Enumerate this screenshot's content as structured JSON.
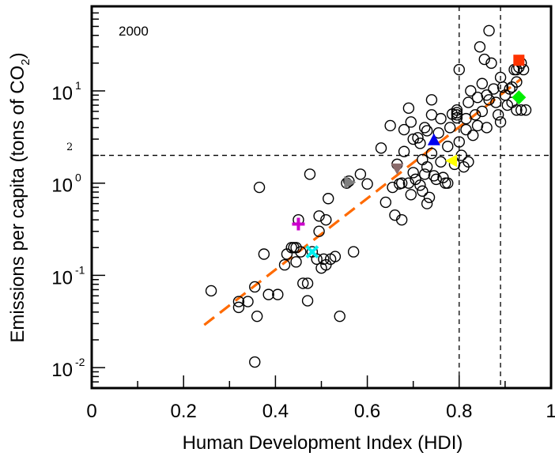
{
  "chart_data": {
    "type": "scatter",
    "title": "",
    "annotation": "2000",
    "xlabel": "Human Development Index (HDI)",
    "ylabel_main": "Emissions per capita (tons of CO",
    "ylabel_sub": "2",
    "ylabel_close": ")",
    "xlim": [
      0,
      1
    ],
    "ylim": [
      0.0066,
      82
    ],
    "yscale": "log",
    "x_ticks": [
      {
        "value": 0,
        "label": "0"
      },
      {
        "value": 0.2,
        "label": "0.2"
      },
      {
        "value": 0.4,
        "label": "0.4"
      },
      {
        "value": 0.6,
        "label": "0.6"
      },
      {
        "value": 0.8,
        "label": "0.8"
      },
      {
        "value": 1.0,
        "label": "1"
      }
    ],
    "x_minor_ticks": [
      0.1,
      0.3,
      0.5,
      0.7,
      0.9
    ],
    "y_ticks": [
      {
        "value": 10,
        "base": "10",
        "exp": "1"
      },
      {
        "value": 1,
        "base": "10",
        "exp": "0"
      },
      {
        "value": 0.1,
        "base": "10",
        "exp": "-1"
      },
      {
        "value": 0.01,
        "base": "10",
        "exp": "-2"
      }
    ],
    "reference_lines": {
      "horizontal": {
        "value": 2,
        "label": "2",
        "style": "dashed"
      },
      "vertical": [
        {
          "value": 0.8,
          "style": "dashed"
        },
        {
          "value": 0.89,
          "style": "dashed"
        }
      ]
    },
    "trend_line": {
      "x": [
        0.245,
        0.935
      ],
      "y": [
        0.029,
        13.5
      ],
      "color": "#ff6a00",
      "style": "dashed"
    },
    "series": [
      {
        "name": "countries",
        "marker": "open-circle",
        "color": "#000000",
        "points": [
          [
            0.26,
            0.068
          ],
          [
            0.32,
            0.052
          ],
          [
            0.32,
            0.045
          ],
          [
            0.34,
            0.052
          ],
          [
            0.355,
            0.075
          ],
          [
            0.355,
            0.0115
          ],
          [
            0.36,
            0.036
          ],
          [
            0.365,
            0.9
          ],
          [
            0.375,
            0.17
          ],
          [
            0.385,
            0.062
          ],
          [
            0.405,
            0.062
          ],
          [
            0.42,
            0.13
          ],
          [
            0.425,
            0.17
          ],
          [
            0.435,
            0.2
          ],
          [
            0.44,
            0.2
          ],
          [
            0.445,
            0.2
          ],
          [
            0.445,
            0.14
          ],
          [
            0.45,
            0.4
          ],
          [
            0.455,
            0.18
          ],
          [
            0.46,
            0.082
          ],
          [
            0.47,
            0.053
          ],
          [
            0.47,
            0.082
          ],
          [
            0.475,
            1.25
          ],
          [
            0.48,
            0.18
          ],
          [
            0.49,
            0.15
          ],
          [
            0.495,
            0.44
          ],
          [
            0.495,
            0.3
          ],
          [
            0.5,
            0.12
          ],
          [
            0.505,
            0.15
          ],
          [
            0.51,
            0.4
          ],
          [
            0.51,
            0.13
          ],
          [
            0.515,
            0.68
          ],
          [
            0.52,
            0.15
          ],
          [
            0.53,
            0.16
          ],
          [
            0.54,
            0.036
          ],
          [
            0.555,
            1.0
          ],
          [
            0.56,
            1.05
          ],
          [
            0.57,
            0.18
          ],
          [
            0.585,
            1.25
          ],
          [
            0.6,
            0.98
          ],
          [
            0.63,
            2.4
          ],
          [
            0.64,
            0.62
          ],
          [
            0.65,
            4.2
          ],
          [
            0.655,
            0.9
          ],
          [
            0.66,
            0.45
          ],
          [
            0.665,
            1.6
          ],
          [
            0.67,
            0.98
          ],
          [
            0.675,
            1.0
          ],
          [
            0.675,
            0.4
          ],
          [
            0.68,
            2.2
          ],
          [
            0.68,
            3.8
          ],
          [
            0.69,
            6.5
          ],
          [
            0.69,
            1.0
          ],
          [
            0.695,
            4.6
          ],
          [
            0.695,
            0.75
          ],
          [
            0.7,
            3.0
          ],
          [
            0.7,
            1.3
          ],
          [
            0.705,
            1.1
          ],
          [
            0.71,
            3.1
          ],
          [
            0.715,
            2.7
          ],
          [
            0.715,
            0.95
          ],
          [
            0.72,
            1.8
          ],
          [
            0.72,
            0.82
          ],
          [
            0.725,
            4.0
          ],
          [
            0.725,
            1.25
          ],
          [
            0.73,
            3.7
          ],
          [
            0.73,
            1.5
          ],
          [
            0.73,
            0.6
          ],
          [
            0.735,
            0.7
          ],
          [
            0.74,
            8.0
          ],
          [
            0.74,
            5.5
          ],
          [
            0.74,
            2.1
          ],
          [
            0.745,
            1.2
          ],
          [
            0.75,
            1.1
          ],
          [
            0.755,
            3.5
          ],
          [
            0.76,
            5.0
          ],
          [
            0.76,
            1.7
          ],
          [
            0.765,
            1.15
          ],
          [
            0.77,
            1.0
          ],
          [
            0.775,
            2.5
          ],
          [
            0.775,
            1.0
          ],
          [
            0.78,
            4.0
          ],
          [
            0.785,
            5.6
          ],
          [
            0.79,
            1.6
          ],
          [
            0.795,
            6.2
          ],
          [
            0.795,
            5.8
          ],
          [
            0.795,
            5.5
          ],
          [
            0.795,
            5.1
          ],
          [
            0.8,
            17.0
          ],
          [
            0.8,
            2.8
          ],
          [
            0.805,
            2.0
          ],
          [
            0.81,
            1.5
          ],
          [
            0.815,
            5.0
          ],
          [
            0.815,
            3.8
          ],
          [
            0.82,
            7.5
          ],
          [
            0.82,
            1.7
          ],
          [
            0.825,
            10.0
          ],
          [
            0.83,
            3.3
          ],
          [
            0.835,
            5.5
          ],
          [
            0.84,
            8.5
          ],
          [
            0.84,
            4.2
          ],
          [
            0.845,
            30.0
          ],
          [
            0.85,
            12.0
          ],
          [
            0.85,
            6.0
          ],
          [
            0.855,
            22.0
          ],
          [
            0.86,
            4.0
          ],
          [
            0.86,
            9.0
          ],
          [
            0.865,
            45.0
          ],
          [
            0.865,
            8.0
          ],
          [
            0.87,
            20.0
          ],
          [
            0.875,
            10.5
          ],
          [
            0.88,
            7.5
          ],
          [
            0.885,
            5.5
          ],
          [
            0.89,
            14.0
          ],
          [
            0.89,
            4.6
          ],
          [
            0.895,
            11.0
          ],
          [
            0.9,
            9.0
          ],
          [
            0.905,
            7.0
          ],
          [
            0.91,
            10.5
          ],
          [
            0.915,
            11.0
          ],
          [
            0.915,
            7.5
          ],
          [
            0.92,
            17.0
          ],
          [
            0.925,
            17.0
          ],
          [
            0.925,
            12.5
          ],
          [
            0.925,
            6.2
          ],
          [
            0.93,
            18.0
          ],
          [
            0.935,
            20.0
          ],
          [
            0.935,
            6.2
          ],
          [
            0.94,
            17.0
          ],
          [
            0.945,
            6.2
          ]
        ]
      },
      {
        "name": "highlight-red-square",
        "marker": "square",
        "color": "#ff3300",
        "points": [
          [
            0.93,
            21.5
          ]
        ]
      },
      {
        "name": "highlight-green-diamond",
        "marker": "diamond",
        "color": "#00ee00",
        "points": [
          [
            0.93,
            8.5
          ]
        ]
      },
      {
        "name": "highlight-blue-triangle-up",
        "marker": "triangle-up",
        "color": "#0000ee",
        "points": [
          [
            0.745,
            2.9
          ]
        ]
      },
      {
        "name": "highlight-yellow-triangle-left",
        "marker": "triangle-left",
        "color": "#ffff00",
        "points": [
          [
            0.785,
            1.75
          ]
        ]
      },
      {
        "name": "highlight-brown-triangle-down",
        "marker": "triangle-down",
        "color": "#8b6c6c",
        "points": [
          [
            0.665,
            1.45
          ]
        ]
      },
      {
        "name": "highlight-gray-triangle-right",
        "marker": "triangle-right",
        "color": "#808080",
        "points": [
          [
            0.56,
            1.02
          ]
        ]
      },
      {
        "name": "highlight-magenta-plus",
        "marker": "plus",
        "color": "#cc00cc",
        "points": [
          [
            0.45,
            0.36
          ]
        ]
      },
      {
        "name": "highlight-cyan-x",
        "marker": "x",
        "color": "#00eeee",
        "points": [
          [
            0.48,
            0.18
          ]
        ]
      }
    ]
  }
}
